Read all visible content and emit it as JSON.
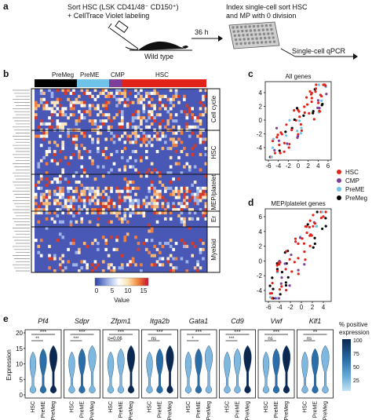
{
  "panel_a": {
    "letter": "a",
    "step1_line1": "Sort HSC (LSK CD41/48⁻ CD150⁺)",
    "step1_line2": "+ CellTrace Violet labeling",
    "mouse_label": "Wild type",
    "time_label": "36 h",
    "step2_line1": "Index single-cell sort HSC",
    "step2_line2": "and MP with 0 division",
    "step3": "Single-cell qPCR"
  },
  "panel_b": {
    "letter": "b",
    "groups": [
      {
        "name": "PreMeg",
        "color": "#000000"
      },
      {
        "name": "PreME",
        "color": "#6fc3e8"
      },
      {
        "name": "CMP",
        "color": "#7e3f98"
      },
      {
        "name": "HSC",
        "color": "#e2231a"
      }
    ],
    "row_groups": [
      "Cell cycle",
      "HSC",
      "MEP/platelet",
      "Er",
      "Myeloid"
    ],
    "colorbar": {
      "ticks": [
        "0",
        "5",
        "10",
        "15"
      ],
      "label": "Value"
    }
  },
  "panel_c": {
    "letter": "c",
    "title": "All genes",
    "x_ticks": [
      "-6",
      "-4",
      "-2",
      "0",
      "2",
      "4",
      "6"
    ],
    "y_ticks": [
      "4",
      "2",
      "0",
      "-2",
      "-4"
    ]
  },
  "panel_d": {
    "letter": "d",
    "title": "MEP/platelet genes",
    "x_ticks": [
      "-6",
      "-4",
      "-2",
      "0",
      "2",
      "4"
    ],
    "y_ticks": [
      "6",
      "4",
      "2",
      "0",
      "-2",
      "-4"
    ]
  },
  "legend": [
    {
      "name": "HSC",
      "color": "#e2231a"
    },
    {
      "name": "CMP",
      "color": "#7e3f98"
    },
    {
      "name": "PreME",
      "color": "#6fc3e8"
    },
    {
      "name": "PreMeg",
      "color": "#000000"
    }
  ],
  "panel_e": {
    "letter": "e",
    "ylabel": "Expression",
    "y_ticks": [
      "20",
      "15",
      "10",
      "5",
      "0"
    ],
    "genes": [
      {
        "name": "Pf4",
        "stats": [
          "***",
          "**"
        ]
      },
      {
        "name": "Sdpr",
        "stats": [
          "***",
          "***"
        ]
      },
      {
        "name": "Zfpm1",
        "stats": [
          "***",
          "p=0.06"
        ]
      },
      {
        "name": "Itga2b",
        "stats": [
          "***",
          "ns"
        ]
      },
      {
        "name": "Gata1",
        "stats": [
          "***",
          "*"
        ]
      },
      {
        "name": "Cd9",
        "stats": [
          "***",
          "***"
        ]
      },
      {
        "name": "Vwf",
        "stats": [
          "***",
          "ns"
        ]
      },
      {
        "name": "Klf1",
        "stats": [
          "**",
          "ns"
        ]
      }
    ],
    "x_categories": [
      "HSC",
      "PreME",
      "PreMeg"
    ],
    "colorbar": {
      "title_line1": "% positive",
      "title_line2": "expression",
      "ticks": [
        "100",
        "75",
        "50",
        "25"
      ]
    }
  }
}
